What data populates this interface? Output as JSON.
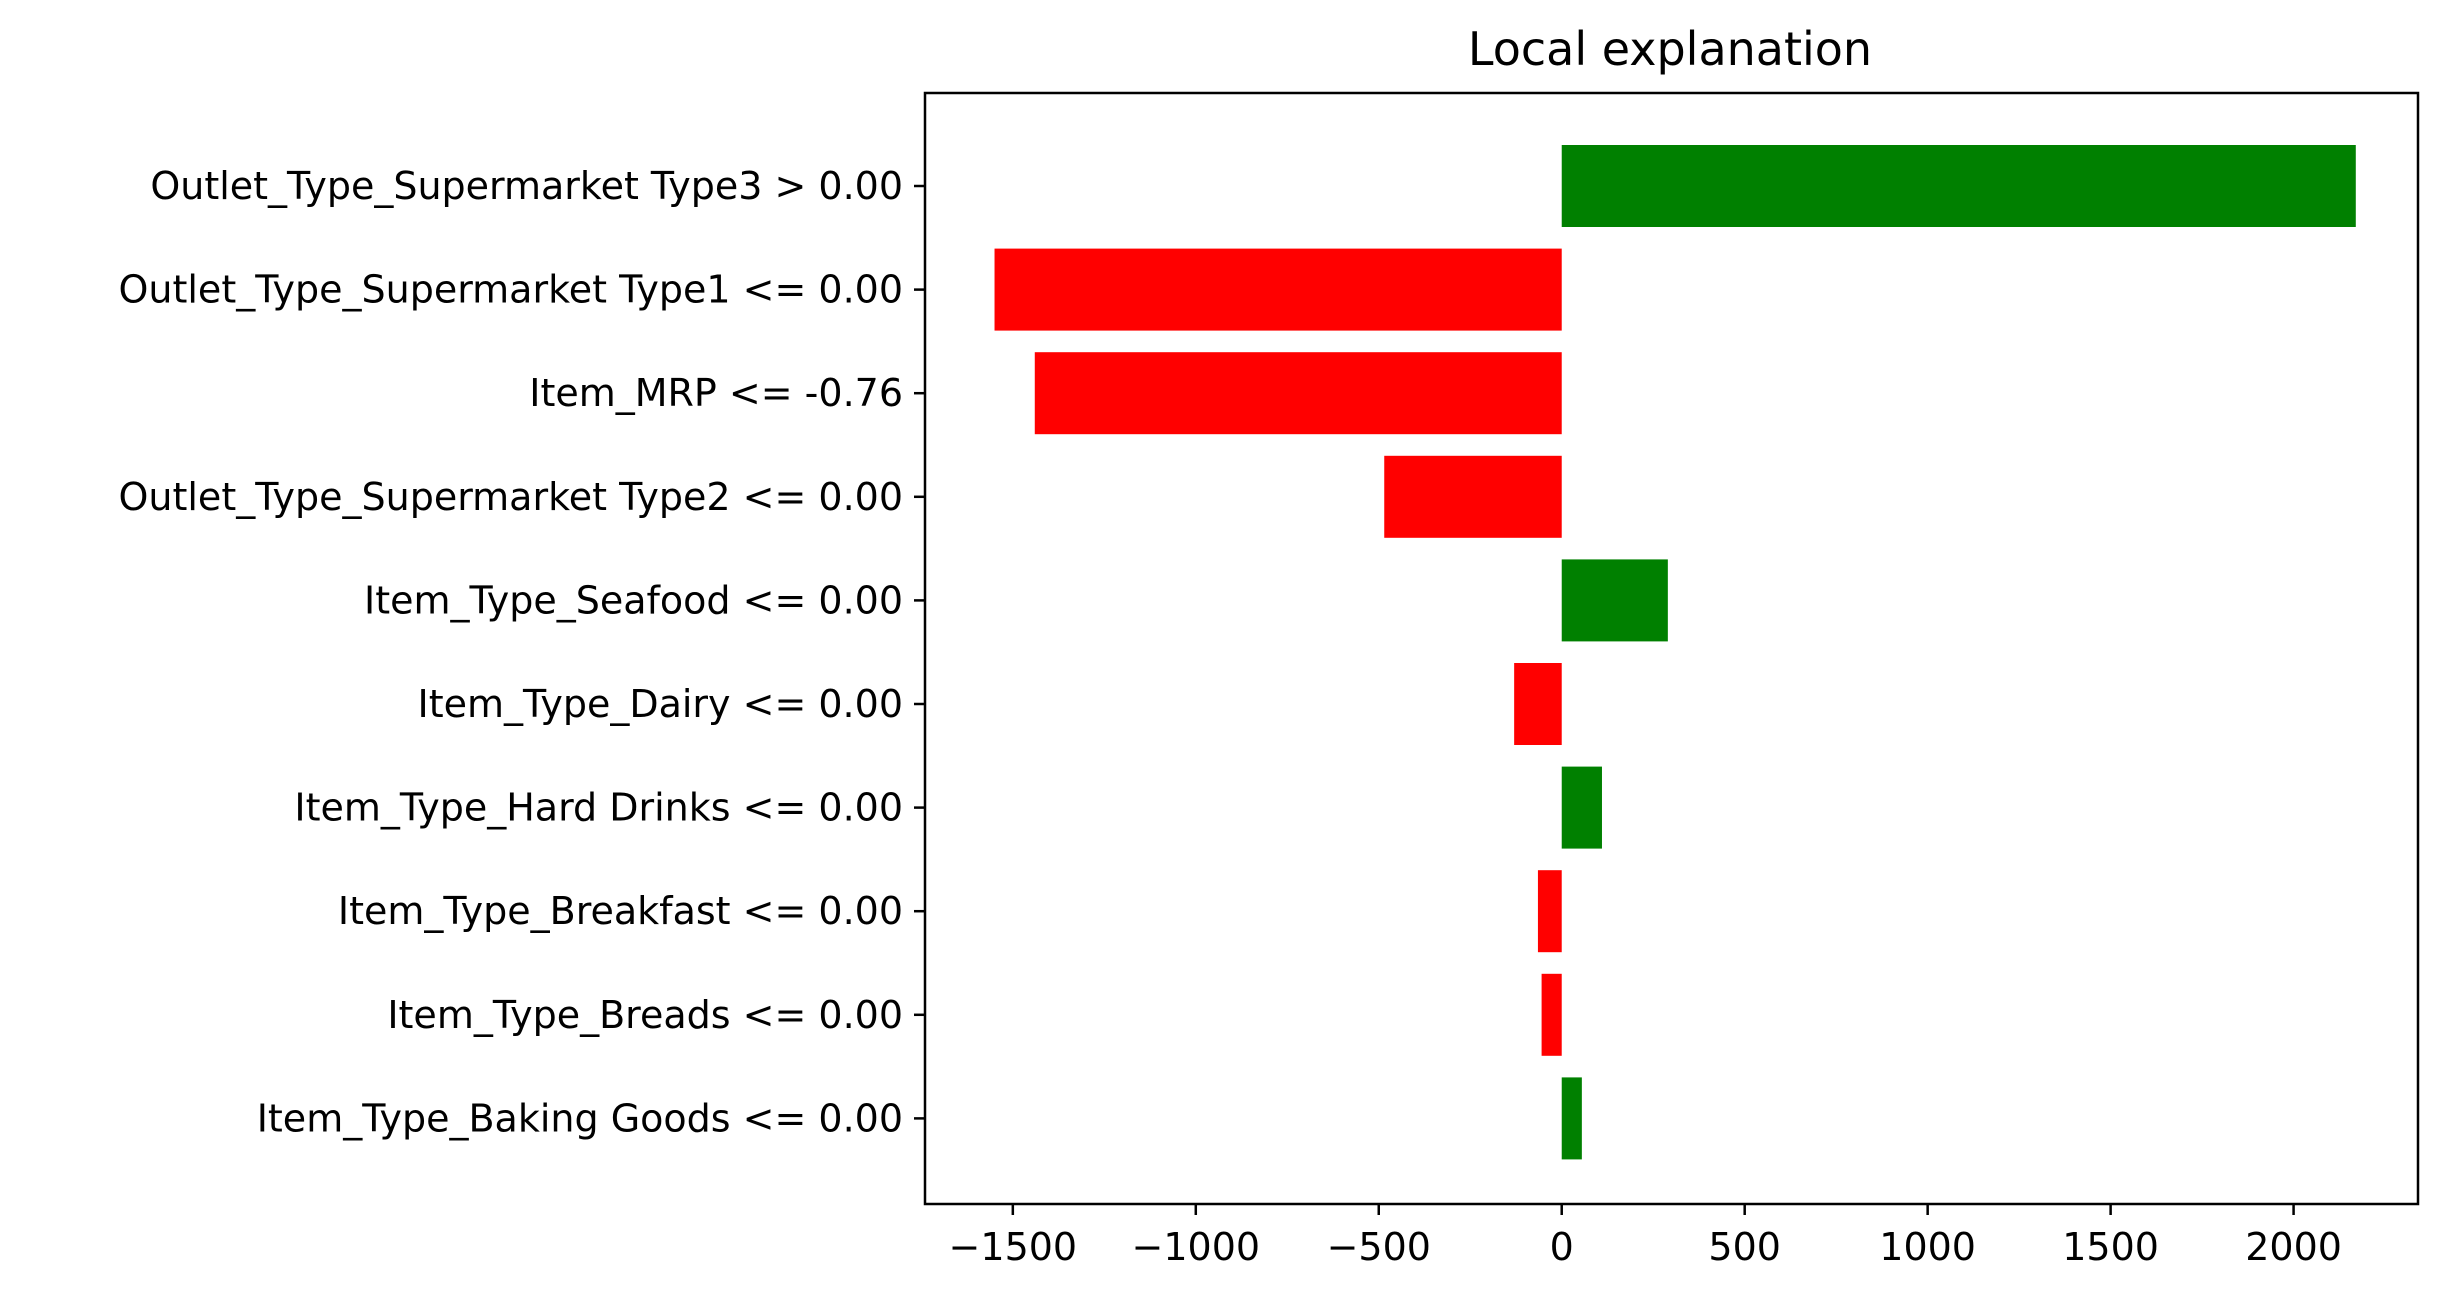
{
  "chart_data": {
    "type": "bar",
    "orientation": "horizontal",
    "title": "Local explanation",
    "xlabel": "",
    "ylabel": "",
    "xlim": [
      -1740,
      2340
    ],
    "xticks": [
      -1500,
      -1000,
      -500,
      0,
      500,
      1000,
      1500,
      2000
    ],
    "xtick_labels": [
      "−1500",
      "−1000",
      "−500",
      "0",
      "500",
      "1000",
      "1500",
      "2000"
    ],
    "grid": false,
    "categories": [
      "Outlet_Type_Supermarket Type3 > 0.00",
      "Outlet_Type_Supermarket Type1 <= 0.00",
      "Item_MRP <= -0.76",
      "Outlet_Type_Supermarket Type2 <= 0.00",
      "Item_Type_Seafood <= 0.00",
      "Item_Type_Dairy <= 0.00",
      "Item_Type_Hard Drinks <= 0.00",
      "Item_Type_Breakfast <= 0.00",
      "Item_Type_Breads <= 0.00",
      "Item_Type_Baking Goods <= 0.00"
    ],
    "values": [
      2170,
      -1550,
      -1440,
      -485,
      290,
      -130,
      110,
      -65,
      -55,
      55
    ],
    "colors": {
      "positive": "#008000",
      "negative": "#ff0000"
    }
  }
}
